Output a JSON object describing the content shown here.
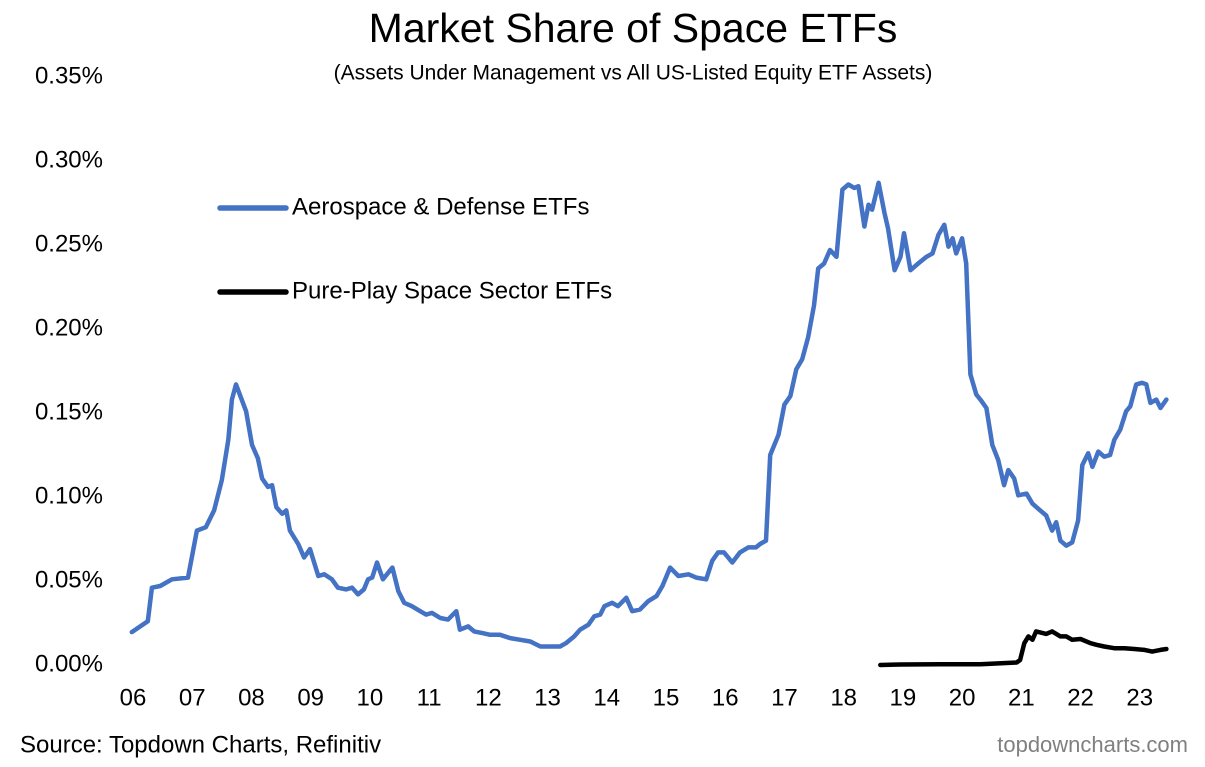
{
  "chart_data": {
    "type": "line",
    "title": "Market Share of Space ETFs",
    "subtitle": "(Assets Under Management vs All US-Listed Equity ETF Assets)",
    "source": "Source: Topdown Charts, Refinitiv",
    "watermark": "topdowncharts.com",
    "legend": "upper left",
    "grid": false,
    "xlim": [
      2006,
      2024
    ],
    "xticks": [
      {
        "value": 2006,
        "label": "06"
      },
      {
        "value": 2007,
        "label": "07"
      },
      {
        "value": 2008,
        "label": "08"
      },
      {
        "value": 2009,
        "label": "09"
      },
      {
        "value": 2010,
        "label": "10"
      },
      {
        "value": 2011,
        "label": "11"
      },
      {
        "value": 2012,
        "label": "12"
      },
      {
        "value": 2013,
        "label": "13"
      },
      {
        "value": 2014,
        "label": "14"
      },
      {
        "value": 2015,
        "label": "15"
      },
      {
        "value": 2016,
        "label": "16"
      },
      {
        "value": 2017,
        "label": "17"
      },
      {
        "value": 2018,
        "label": "18"
      },
      {
        "value": 2019,
        "label": "19"
      },
      {
        "value": 2020,
        "label": "20"
      },
      {
        "value": 2021,
        "label": "21"
      },
      {
        "value": 2022,
        "label": "22"
      },
      {
        "value": 2023,
        "label": "23"
      }
    ],
    "ylim": [
      0,
      0.35
    ],
    "yticks": [
      {
        "value": 0,
        "label": "0.00%"
      },
      {
        "value": 0.05,
        "label": "0.05%"
      },
      {
        "value": 0.1,
        "label": "0.10%"
      },
      {
        "value": 0.15,
        "label": "0.15%"
      },
      {
        "value": 0.2,
        "label": "0.20%"
      },
      {
        "value": 0.25,
        "label": "0.25%"
      },
      {
        "value": 0.3,
        "label": "0.30%"
      },
      {
        "value": 0.35,
        "label": "0.35%"
      }
    ],
    "series": [
      {
        "name": "Aerospace & Defense ETFs",
        "color": "#4472c4",
        "x": [
          2006.03,
          2006.3,
          2006.37,
          2006.51,
          2006.71,
          2006.98,
          2007.13,
          2007.28,
          2007.42,
          2007.55,
          2007.66,
          2007.72,
          2007.79,
          2007.96,
          2008.06,
          2008.16,
          2008.23,
          2008.33,
          2008.4,
          2008.47,
          2008.57,
          2008.64,
          2008.7,
          2008.84,
          2008.94,
          2009.04,
          2009.18,
          2009.28,
          2009.41,
          2009.51,
          2009.65,
          2009.75,
          2009.85,
          2009.95,
          2010.02,
          2010.09,
          2010.17,
          2010.27,
          2010.43,
          2010.53,
          2010.63,
          2010.76,
          2010.9,
          2011.0,
          2011.1,
          2011.24,
          2011.37,
          2011.51,
          2011.57,
          2011.71,
          2011.81,
          2011.95,
          2012.08,
          2012.25,
          2012.42,
          2012.59,
          2012.76,
          2012.93,
          2013.09,
          2013.26,
          2013.36,
          2013.5,
          2013.6,
          2013.74,
          2013.84,
          2013.94,
          2014.01,
          2014.14,
          2014.24,
          2014.38,
          2014.48,
          2014.61,
          2014.75,
          2014.89,
          2014.99,
          2015.12,
          2015.26,
          2015.43,
          2015.56,
          2015.73,
          2015.83,
          2015.93,
          2016.03,
          2016.17,
          2016.3,
          2016.44,
          2016.57,
          2016.64,
          2016.74,
          2016.81,
          2016.95,
          2017.05,
          2017.15,
          2017.25,
          2017.35,
          2017.45,
          2017.55,
          2017.62,
          2017.72,
          2017.82,
          2017.93,
          2018.03,
          2018.13,
          2018.23,
          2018.3,
          2018.4,
          2018.47,
          2018.53,
          2018.64,
          2018.74,
          2018.8,
          2018.91,
          2019.01,
          2019.07,
          2019.18,
          2019.31,
          2019.45,
          2019.55,
          2019.65,
          2019.75,
          2019.82,
          2019.89,
          2019.95,
          2020.05,
          2020.12,
          2020.19,
          2020.29,
          2020.36,
          2020.46,
          2020.56,
          2020.66,
          2020.76,
          2020.83,
          2020.93,
          2021.0,
          2021.14,
          2021.24,
          2021.37,
          2021.47,
          2021.57,
          2021.64,
          2021.71,
          2021.81,
          2021.91,
          2022.01,
          2022.08,
          2022.18,
          2022.25,
          2022.35,
          2022.45,
          2022.55,
          2022.62,
          2022.72,
          2022.82,
          2022.89,
          2022.99,
          2023.09,
          2023.16,
          2023.23,
          2023.33,
          2023.4,
          2023.5
        ],
        "values": [
          0.0196,
          0.026,
          0.046,
          0.047,
          0.051,
          0.052,
          0.08,
          0.082,
          0.092,
          0.11,
          0.134,
          0.158,
          0.167,
          0.151,
          0.131,
          0.123,
          0.111,
          0.106,
          0.107,
          0.094,
          0.09,
          0.092,
          0.08,
          0.072,
          0.064,
          0.069,
          0.053,
          0.054,
          0.051,
          0.046,
          0.045,
          0.046,
          0.042,
          0.045,
          0.051,
          0.052,
          0.061,
          0.051,
          0.058,
          0.044,
          0.037,
          0.035,
          0.032,
          0.03,
          0.031,
          0.028,
          0.027,
          0.032,
          0.021,
          0.023,
          0.02,
          0.019,
          0.018,
          0.018,
          0.016,
          0.015,
          0.014,
          0.011,
          0.011,
          0.011,
          0.013,
          0.017,
          0.021,
          0.024,
          0.029,
          0.03,
          0.035,
          0.037,
          0.035,
          0.04,
          0.032,
          0.033,
          0.038,
          0.041,
          0.047,
          0.058,
          0.053,
          0.054,
          0.052,
          0.051,
          0.062,
          0.067,
          0.067,
          0.061,
          0.067,
          0.07,
          0.07,
          0.072,
          0.074,
          0.125,
          0.137,
          0.155,
          0.16,
          0.176,
          0.182,
          0.195,
          0.214,
          0.236,
          0.239,
          0.247,
          0.243,
          0.283,
          0.286,
          0.284,
          0.285,
          0.261,
          0.274,
          0.271,
          0.287,
          0.269,
          0.26,
          0.235,
          0.243,
          0.257,
          0.235,
          0.239,
          0.243,
          0.245,
          0.256,
          0.262,
          0.249,
          0.254,
          0.245,
          0.254,
          0.239,
          0.173,
          0.161,
          0.158,
          0.153,
          0.131,
          0.122,
          0.107,
          0.116,
          0.111,
          0.101,
          0.102,
          0.096,
          0.092,
          0.089,
          0.08,
          0.085,
          0.074,
          0.071,
          0.073,
          0.086,
          0.119,
          0.126,
          0.118,
          0.127,
          0.124,
          0.125,
          0.134,
          0.14,
          0.151,
          0.154,
          0.167,
          0.168,
          0.167,
          0.156,
          0.158,
          0.153,
          0.158
        ]
      },
      {
        "name": "Pure-Play Space Sector ETFs",
        "color": "#000000",
        "x": [
          2018.67,
          2019.01,
          2019.68,
          2020.36,
          2020.97,
          2021.03,
          2021.1,
          2021.17,
          2021.24,
          2021.3,
          2021.47,
          2021.57,
          2021.71,
          2021.81,
          2021.91,
          2022.05,
          2022.22,
          2022.32,
          2022.45,
          2022.62,
          2022.79,
          2022.96,
          2023.13,
          2023.26,
          2023.4,
          2023.5
        ],
        "values": [
          0.0,
          0.0003,
          0.0005,
          0.0005,
          0.0015,
          0.003,
          0.013,
          0.017,
          0.015,
          0.02,
          0.0185,
          0.02,
          0.017,
          0.017,
          0.015,
          0.0155,
          0.013,
          0.012,
          0.011,
          0.01,
          0.01,
          0.0095,
          0.009,
          0.008,
          0.009,
          0.0095
        ]
      }
    ]
  }
}
